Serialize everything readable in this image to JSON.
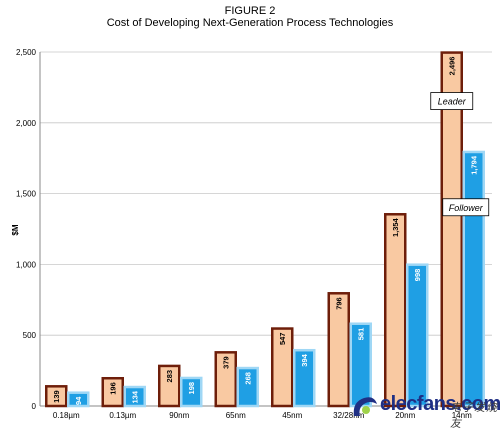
{
  "figure_label": "FIGURE 2",
  "chart_data": {
    "type": "bar",
    "title": "Cost of Developing Next-Generation Process Technologies",
    "xlabel": "",
    "ylabel": "$M",
    "ylim": [
      0,
      2500
    ],
    "yticks": [
      "0",
      "500",
      "1,000",
      "1,500",
      "2,000",
      "2,500"
    ],
    "grid": true,
    "categories": [
      "0.18µm",
      "0.13µm",
      "90nm",
      "65nm",
      "45nm",
      "32/28nm",
      "20nm",
      "14nm"
    ],
    "series": [
      {
        "name": "Leader",
        "color": "#f9c9a2",
        "border": "#6e1e0a",
        "values": [
          139,
          196,
          283,
          379,
          547,
          796,
          1354,
          2496
        ],
        "labels": [
          "139",
          "196",
          "283",
          "379",
          "547",
          "796",
          "1,354",
          "2,496"
        ]
      },
      {
        "name": "Follower",
        "color": "#1f9fe4",
        "border": "#9fd7f5",
        "values": [
          94,
          134,
          198,
          268,
          394,
          581,
          998,
          1794
        ],
        "labels": [
          "94",
          "134",
          "198",
          "268",
          "394",
          "581",
          "998",
          "1,794"
        ]
      }
    ],
    "annotations": [
      {
        "text": "Leader",
        "series": "Leader"
      },
      {
        "text": "Follower",
        "series": "Follower"
      }
    ]
  },
  "watermark": {
    "text": "elecfans.com",
    "cn_text": "电子发烧友",
    "color": "#1f2f84"
  }
}
